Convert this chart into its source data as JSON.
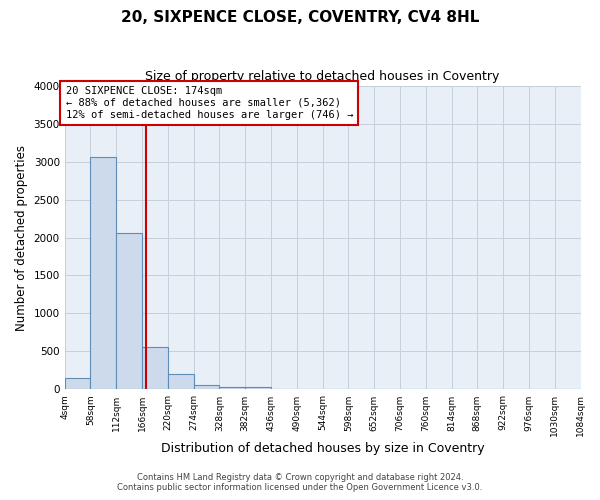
{
  "title": "20, SIXPENCE CLOSE, COVENTRY, CV4 8HL",
  "subtitle": "Size of property relative to detached houses in Coventry",
  "xlabel": "Distribution of detached houses by size in Coventry",
  "ylabel": "Number of detached properties",
  "bin_edges": [
    4,
    58,
    112,
    166,
    220,
    274,
    328,
    382,
    436,
    490,
    544,
    598,
    652,
    706,
    760,
    814,
    868,
    922,
    976,
    1030,
    1084
  ],
  "bin_counts": [
    150,
    3060,
    2060,
    560,
    210,
    65,
    35,
    30,
    0,
    0,
    0,
    0,
    0,
    0,
    0,
    0,
    0,
    0,
    0,
    0
  ],
  "bar_color": "#ccdaeb",
  "bar_edge_color": "#5f8db5",
  "property_size": 174,
  "property_line_color": "#cc0000",
  "annotation_title": "20 SIXPENCE CLOSE: 174sqm",
  "annotation_line1": "← 88% of detached houses are smaller (5,362)",
  "annotation_line2": "12% of semi-detached houses are larger (746) →",
  "annotation_box_color": "#cc0000",
  "ylim": [
    0,
    4000
  ],
  "yticks": [
    0,
    500,
    1000,
    1500,
    2000,
    2500,
    3000,
    3500,
    4000
  ],
  "footnote1": "Contains HM Land Registry data © Crown copyright and database right 2024.",
  "footnote2": "Contains public sector information licensed under the Open Government Licence v3.0.",
  "bg_color": "#ffffff",
  "ax_bg_color": "#e8eff7",
  "grid_color": "#c5d0dd"
}
